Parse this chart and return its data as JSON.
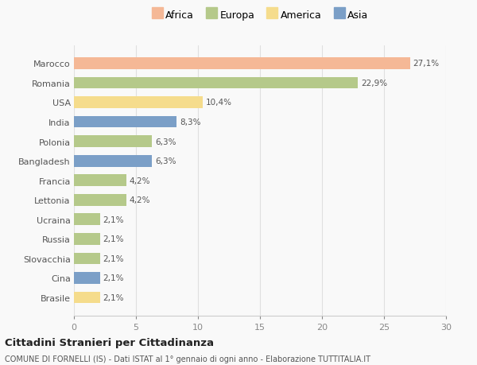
{
  "countries": [
    "Marocco",
    "Romania",
    "USA",
    "India",
    "Polonia",
    "Bangladesh",
    "Francia",
    "Lettonia",
    "Ucraina",
    "Russia",
    "Slovacchia",
    "Cina",
    "Brasile"
  ],
  "values": [
    27.1,
    22.9,
    10.4,
    8.3,
    6.3,
    6.3,
    4.2,
    4.2,
    2.1,
    2.1,
    2.1,
    2.1,
    2.1
  ],
  "labels": [
    "27,1%",
    "22,9%",
    "10,4%",
    "8,3%",
    "6,3%",
    "6,3%",
    "4,2%",
    "4,2%",
    "2,1%",
    "2,1%",
    "2,1%",
    "2,1%",
    "2,1%"
  ],
  "bar_colors": [
    "#f5b896",
    "#b5c98a",
    "#f5dc8c",
    "#7b9fc7",
    "#b5c98a",
    "#7b9fc7",
    "#b5c98a",
    "#b5c98a",
    "#b5c98a",
    "#b5c98a",
    "#b5c98a",
    "#7b9fc7",
    "#f5dc8c"
  ],
  "legend_labels": [
    "Africa",
    "Europa",
    "America",
    "Asia"
  ],
  "legend_colors": [
    "#f5b896",
    "#b5c98a",
    "#f5dc8c",
    "#7b9fc7"
  ],
  "title": "Cittadini Stranieri per Cittadinanza",
  "subtitle": "COMUNE DI FORNELLI (IS) - Dati ISTAT al 1° gennaio di ogni anno - Elaborazione TUTTITALIA.IT",
  "xlim": [
    0,
    30
  ],
  "xticks": [
    0,
    5,
    10,
    15,
    20,
    25,
    30
  ],
  "background_color": "#f9f9f9",
  "grid_color": "#e0e0e0"
}
